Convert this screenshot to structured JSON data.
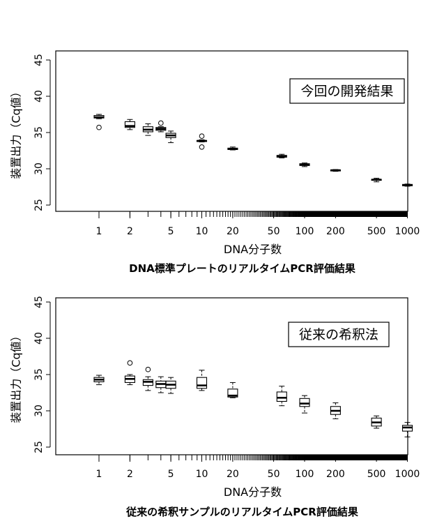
{
  "chart_data": [
    {
      "type": "boxplot",
      "caption": "DNA標準プレートのリアルタイムPCR評価結果",
      "annotation": "今回の開発結果",
      "xlabel": "DNA分子数",
      "ylabel": "装置出力（Cq値）",
      "x_scale": "log",
      "xlim": [
        0.4,
        1200
      ],
      "ylim": [
        24,
        46
      ],
      "x_ticks": [
        1,
        2,
        5,
        10,
        20,
        50,
        100,
        200,
        500,
        1000
      ],
      "x_tick_labels": [
        "1",
        "2",
        "5",
        "10",
        "20",
        "50",
        "100",
        "200",
        "500",
        "1000"
      ],
      "y_ticks": [
        25,
        30,
        35,
        40,
        45
      ],
      "y_tick_labels": [
        "25",
        "30",
        "35",
        "40",
        "45"
      ],
      "boxes": [
        {
          "x": 1,
          "min": 36.9,
          "q1": 37.0,
          "median": 37.1,
          "q3": 37.35,
          "max": 37.5,
          "outliers": [
            35.7
          ]
        },
        {
          "x": 2,
          "min": 35.4,
          "q1": 35.7,
          "median": 35.9,
          "q3": 36.5,
          "max": 36.8,
          "outliers": []
        },
        {
          "x": 3,
          "min": 34.6,
          "q1": 35.1,
          "median": 35.4,
          "q3": 35.8,
          "max": 36.2,
          "outliers": []
        },
        {
          "x": 4,
          "min": 35.1,
          "q1": 35.3,
          "median": 35.5,
          "q3": 35.7,
          "max": 35.8,
          "outliers": [
            36.3
          ]
        },
        {
          "x": 5,
          "min": 33.6,
          "q1": 34.3,
          "median": 34.6,
          "q3": 34.9,
          "max": 35.2,
          "outliers": []
        },
        {
          "x": 10,
          "min": 33.7,
          "q1": 33.8,
          "median": 33.85,
          "q3": 33.9,
          "max": 34.0,
          "outliers": [
            34.5,
            33.0
          ]
        },
        {
          "x": 20,
          "min": 32.6,
          "q1": 32.65,
          "median": 32.75,
          "q3": 32.85,
          "max": 33.0,
          "outliers": []
        },
        {
          "x": 60,
          "min": 31.5,
          "q1": 31.6,
          "median": 31.7,
          "q3": 31.85,
          "max": 32.0,
          "outliers": []
        },
        {
          "x": 100,
          "min": 30.3,
          "q1": 30.45,
          "median": 30.55,
          "q3": 30.7,
          "max": 30.8,
          "outliers": []
        },
        {
          "x": 200,
          "min": 29.65,
          "q1": 29.7,
          "median": 29.8,
          "q3": 29.85,
          "max": 29.9,
          "outliers": []
        },
        {
          "x": 500,
          "min": 28.2,
          "q1": 28.45,
          "median": 28.5,
          "q3": 28.55,
          "max": 28.7,
          "outliers": []
        },
        {
          "x": 1000,
          "min": 27.6,
          "q1": 27.65,
          "median": 27.75,
          "q3": 27.85,
          "max": 27.9,
          "outliers": []
        }
      ]
    },
    {
      "type": "boxplot",
      "caption": "従来の希釈サンプルのリアルタイムPCR評価結果",
      "annotation": "従来の希釈法",
      "xlabel": "DNA分子数",
      "ylabel": "装置出力（Cq値）",
      "x_scale": "log",
      "xlim": [
        0.4,
        1200
      ],
      "ylim": [
        24,
        46
      ],
      "x_ticks": [
        1,
        2,
        5,
        10,
        20,
        50,
        100,
        200,
        500,
        1000
      ],
      "x_tick_labels": [
        "1",
        "2",
        "5",
        "10",
        "20",
        "50",
        "100",
        "200",
        "500",
        "1000"
      ],
      "y_ticks": [
        25,
        30,
        35,
        40,
        45
      ],
      "y_tick_labels": [
        "25",
        "30",
        "35",
        "40",
        "45"
      ],
      "boxes": [
        {
          "x": 1,
          "min": 33.6,
          "q1": 34.0,
          "median": 34.3,
          "q3": 34.6,
          "max": 34.9,
          "outliers": []
        },
        {
          "x": 2,
          "min": 33.6,
          "q1": 33.9,
          "median": 34.4,
          "q3": 34.8,
          "max": 35.0,
          "outliers": [
            36.6
          ]
        },
        {
          "x": 3,
          "min": 32.8,
          "q1": 33.5,
          "median": 34.0,
          "q3": 34.3,
          "max": 34.7,
          "outliers": [
            35.7
          ]
        },
        {
          "x": 4,
          "min": 32.5,
          "q1": 33.2,
          "median": 33.7,
          "q3": 34.1,
          "max": 34.7,
          "outliers": []
        },
        {
          "x": 5,
          "min": 32.4,
          "q1": 33.1,
          "median": 33.6,
          "q3": 34.1,
          "max": 34.6,
          "outliers": []
        },
        {
          "x": 10,
          "min": 32.8,
          "q1": 33.1,
          "median": 33.5,
          "q3": 34.6,
          "max": 35.6,
          "outliers": []
        },
        {
          "x": 20,
          "min": 31.8,
          "q1": 31.9,
          "median": 32.1,
          "q3": 33.0,
          "max": 33.9,
          "outliers": []
        },
        {
          "x": 60,
          "min": 30.7,
          "q1": 31.3,
          "median": 31.8,
          "q3": 32.6,
          "max": 33.4,
          "outliers": []
        },
        {
          "x": 100,
          "min": 29.7,
          "q1": 30.6,
          "median": 31.0,
          "q3": 31.7,
          "max": 32.1,
          "outliers": []
        },
        {
          "x": 200,
          "min": 28.9,
          "q1": 29.5,
          "median": 30.0,
          "q3": 30.6,
          "max": 31.1,
          "outliers": []
        },
        {
          "x": 500,
          "min": 27.6,
          "q1": 27.9,
          "median": 28.4,
          "q3": 29.0,
          "max": 29.3,
          "outliers": []
        },
        {
          "x": 1000,
          "min": 26.4,
          "q1": 27.2,
          "median": 27.7,
          "q3": 28.0,
          "max": 28.4,
          "outliers": []
        }
      ]
    }
  ]
}
